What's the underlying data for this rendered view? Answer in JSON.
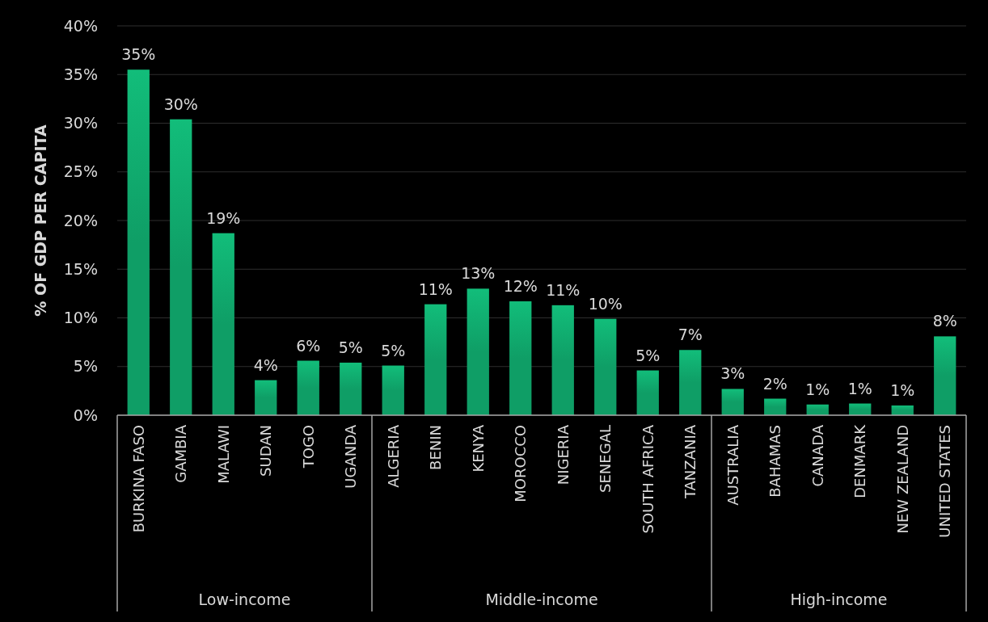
{
  "chart_data": {
    "type": "bar",
    "ylabel": "% OF GDP PER CAPITA",
    "categories": [
      "BURKINA FASO",
      "GAMBIA",
      "MALAWI",
      "SUDAN",
      "TOGO",
      "UGANDA",
      "ALGERIA",
      "BENIN",
      "KENYA",
      "MOROCCO",
      "NIGERIA",
      "SENEGAL",
      "SOUTH AFRICA",
      "TANZANIA",
      "AUSTRALIA",
      "BAHAMAS",
      "CANADA",
      "DENMARK",
      "NEW ZEALAND",
      "UNITED STATES"
    ],
    "values": [
      35.5,
      30.4,
      18.7,
      3.6,
      5.6,
      5.4,
      5.1,
      11.4,
      13.0,
      11.7,
      11.3,
      9.9,
      4.6,
      6.7,
      2.7,
      1.7,
      1.1,
      1.2,
      1.0,
      8.1
    ],
    "value_labels": [
      "35%",
      "30%",
      "19%",
      "4%",
      "6%",
      "5%",
      "5%",
      "11%",
      "13%",
      "12%",
      "11%",
      "10%",
      "5%",
      "7%",
      "3%",
      "2%",
      "1%",
      "1%",
      "1%",
      "8%"
    ],
    "color": "#0f9e66",
    "ylim": [
      0,
      40
    ],
    "yticks": [
      {
        "value": 0,
        "label": "0%"
      },
      {
        "value": 5,
        "label": "5%"
      },
      {
        "value": 10,
        "label": "10%"
      },
      {
        "value": 15,
        "label": "15%"
      },
      {
        "value": 20,
        "label": "20%"
      },
      {
        "value": 25,
        "label": "25%"
      },
      {
        "value": 30,
        "label": "30%"
      },
      {
        "value": 35,
        "label": "35%"
      },
      {
        "value": 40,
        "label": "40%"
      }
    ],
    "grid": "y",
    "annotations": [
      "Low-income",
      "Middle-income",
      "High-income"
    ]
  }
}
